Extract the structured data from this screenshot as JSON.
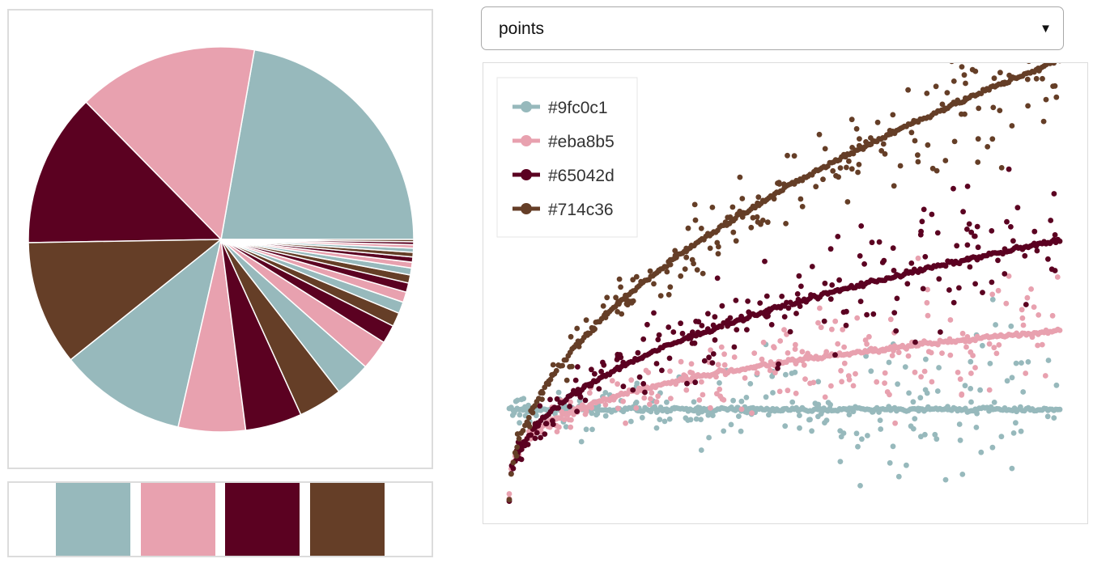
{
  "palette": {
    "colors": [
      "#9fc0c1",
      "#eba8b5",
      "#65042d",
      "#714c36"
    ],
    "display_colors": [
      "#97b9bc",
      "#e8a1af",
      "#5b0121",
      "#653e27"
    ]
  },
  "mode_select": {
    "value": "points"
  },
  "chart_data": [
    {
      "type": "pie",
      "title": "",
      "slice_colors_cycle": [
        "#97b9bc",
        "#e8a1af",
        "#5b0121",
        "#653e27"
      ],
      "values": [
        22.9,
        15.6,
        13.3,
        10.8,
        11.0,
        5.8,
        4.9,
        3.8,
        3.1,
        2.6,
        1.6,
        1.2,
        1.0,
        0.9,
        0.8,
        0.7,
        0.6,
        0.5,
        0.45,
        0.4,
        0.35,
        0.3,
        0.25,
        0.2
      ]
    },
    {
      "type": "scatter",
      "title": "",
      "xlabel": "",
      "ylabel": "",
      "xlim": [
        0,
        1
      ],
      "ylim": [
        -0.35,
        1.2
      ],
      "legend_position": "top-left",
      "series": [
        {
          "name": "#9fc0c1",
          "color": "#97b9bc",
          "trend": "flat",
          "spread": 0.14
        },
        {
          "name": "#eba8b5",
          "color": "#e8a1af",
          "trend": "log-slow",
          "spread": 0.12
        },
        {
          "name": "#65042d",
          "color": "#5b0121",
          "trend": "sqrt-mid",
          "spread": 0.14
        },
        {
          "name": "#714c36",
          "color": "#653e27",
          "trend": "sqrt-steep",
          "spread": 0.12
        }
      ]
    }
  ]
}
